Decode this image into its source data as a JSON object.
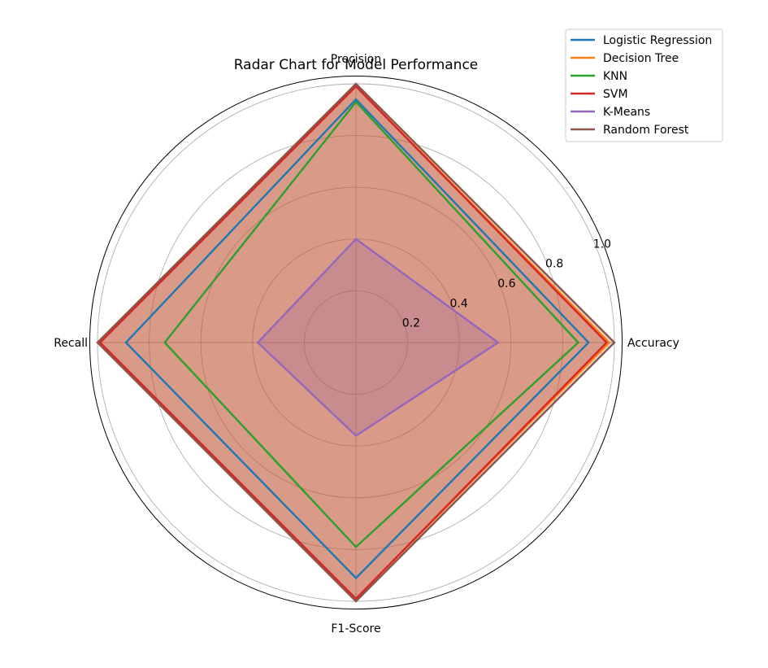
{
  "chart_data": {
    "type": "radar",
    "title": "Radar Chart for Model Performance",
    "axes": [
      "Accuracy",
      "Precision",
      "Recall",
      "F1-Score"
    ],
    "rlim": [
      0,
      1.0
    ],
    "radial_ticks": [
      0.2,
      0.4,
      0.6,
      0.8,
      1.0
    ],
    "radial_tick_labels": [
      "0.2",
      "0.4",
      "0.6",
      "0.8",
      "1.0"
    ],
    "grid": true,
    "legend_position": "top-right",
    "series": [
      {
        "name": "Logistic Regression",
        "color": "#1f77b4",
        "values": [
          0.9,
          0.94,
          0.89,
          0.91
        ],
        "fill": false
      },
      {
        "name": "Decision Tree",
        "color": "#ff7f0e",
        "values": [
          0.98,
          0.99,
          1.0,
          0.99
        ],
        "fill": true
      },
      {
        "name": "KNN",
        "color": "#2ca02c",
        "values": [
          0.86,
          0.93,
          0.74,
          0.79
        ],
        "fill": false
      },
      {
        "name": "SVM",
        "color": "#d62728",
        "values": [
          0.97,
          0.99,
          0.99,
          0.99
        ],
        "fill": true
      },
      {
        "name": "K-Means",
        "color": "#9467bd",
        "values": [
          0.55,
          0.4,
          0.38,
          0.36
        ],
        "fill": true
      },
      {
        "name": "Random Forest",
        "color": "#8c564b",
        "values": [
          1.0,
          1.0,
          1.0,
          1.0
        ],
        "fill": true
      }
    ]
  }
}
